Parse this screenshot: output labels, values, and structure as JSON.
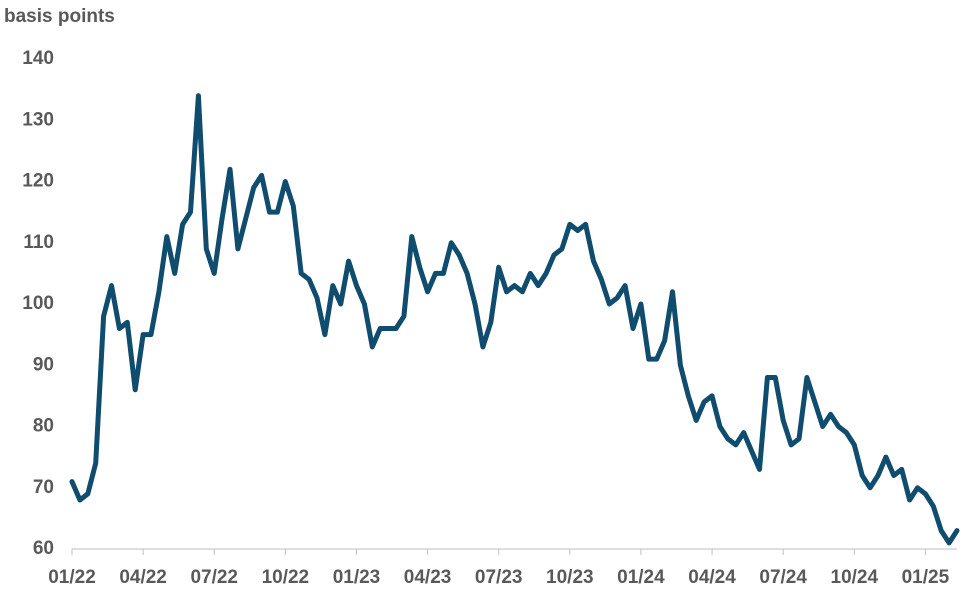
{
  "chart_data": {
    "type": "line",
    "y_label": "basis points",
    "categories": [
      "01/22",
      null,
      null,
      null,
      null,
      null,
      null,
      null,
      null,
      "04/22",
      null,
      null,
      null,
      null,
      null,
      null,
      null,
      null,
      "07/22",
      null,
      null,
      null,
      null,
      null,
      null,
      null,
      null,
      "10/22",
      null,
      null,
      null,
      null,
      null,
      null,
      null,
      null,
      "01/23",
      null,
      null,
      null,
      null,
      null,
      null,
      null,
      null,
      "04/23",
      null,
      null,
      null,
      null,
      null,
      null,
      null,
      null,
      "07/23",
      null,
      null,
      null,
      null,
      null,
      null,
      null,
      null,
      "10/23",
      null,
      null,
      null,
      null,
      null,
      null,
      null,
      null,
      "01/24",
      null,
      null,
      null,
      null,
      null,
      null,
      null,
      null,
      "04/24",
      null,
      null,
      null,
      null,
      null,
      null,
      null,
      null,
      "07/24",
      null,
      null,
      null,
      null,
      null,
      null,
      null,
      null,
      "10/24",
      null,
      null,
      null,
      null,
      null,
      null,
      null,
      null,
      "01/25",
      null,
      null,
      null,
      null
    ],
    "values": [
      71,
      68,
      69,
      74,
      98,
      103,
      96,
      97,
      86,
      95,
      95,
      102,
      111,
      105,
      113,
      115,
      134,
      109,
      105,
      114,
      122,
      109,
      114,
      119,
      121,
      115,
      115,
      120,
      116,
      105,
      104,
      101,
      95,
      103,
      100,
      107,
      103,
      100,
      93,
      96,
      96,
      96,
      98,
      111,
      106,
      102,
      105,
      105,
      110,
      108,
      105,
      100,
      93,
      97,
      106,
      102,
      103,
      102,
      105,
      103,
      105,
      108,
      109,
      113,
      112,
      113,
      107,
      104,
      100,
      101,
      103,
      96,
      100,
      91,
      91,
      94,
      102,
      90,
      85,
      81,
      84,
      85,
      80,
      78,
      77,
      79,
      76,
      73,
      88,
      88,
      81,
      77,
      78,
      88,
      84,
      80,
      82,
      80,
      79,
      77,
      72,
      70,
      72,
      75,
      72,
      73,
      68,
      70,
      69,
      67,
      63,
      61,
      63
    ],
    "color": "#0f4c6e",
    "ylim": [
      60,
      140
    ],
    "yticks": [
      60,
      70,
      80,
      90,
      100,
      110,
      120,
      130,
      140
    ]
  }
}
